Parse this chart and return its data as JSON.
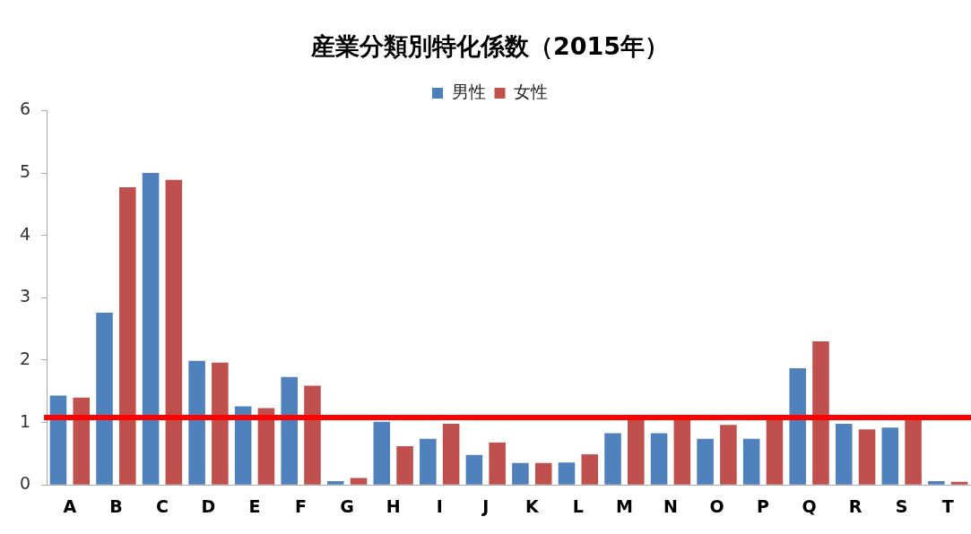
{
  "chart_data": {
    "type": "bar",
    "title": "産業分類別特化係数（2015年）",
    "categories": [
      "A",
      "B",
      "C",
      "D",
      "E",
      "F",
      "G",
      "H",
      "I",
      "J",
      "K",
      "L",
      "M",
      "N",
      "O",
      "P",
      "Q",
      "R",
      "S",
      "T"
    ],
    "series": [
      {
        "name": "男性",
        "color": "#4f81bd",
        "values": [
          1.43,
          2.76,
          5.0,
          1.99,
          1.26,
          1.73,
          0.06,
          1.01,
          0.74,
          0.48,
          0.35,
          0.36,
          0.83,
          0.83,
          0.74,
          0.74,
          1.87,
          0.98,
          0.92,
          0.06
        ]
      },
      {
        "name": "女性",
        "color": "#c0504d",
        "values": [
          1.4,
          4.77,
          4.89,
          1.96,
          1.23,
          1.59,
          0.11,
          0.62,
          0.98,
          0.68,
          0.35,
          0.49,
          1.08,
          1.08,
          0.96,
          1.08,
          2.3,
          0.89,
          1.08,
          0.05
        ]
      }
    ],
    "ylim": [
      0,
      6
    ],
    "yticks": [
      0,
      1,
      2,
      3,
      4,
      5,
      6
    ],
    "grid": false,
    "legend": "top",
    "ref_lines": [
      {
        "axis": "y",
        "value": 1.08,
        "color": "#ff0000"
      }
    ]
  }
}
